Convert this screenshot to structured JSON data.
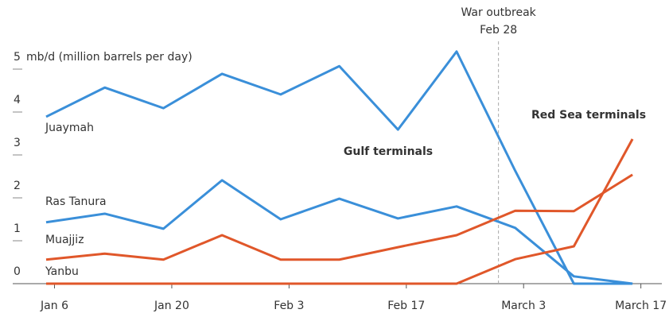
{
  "chart_data": {
    "type": "line",
    "y_axis_label": "mb/d (million barrels per day)",
    "x": [
      5,
      12,
      19,
      26,
      33,
      40,
      47,
      54,
      61,
      68,
      75
    ],
    "xlim": [
      2,
      78
    ],
    "xticks": [
      {
        "value": 6,
        "label": "Jan 6"
      },
      {
        "value": 20,
        "label": "Jan 20"
      },
      {
        "value": 34,
        "label": "Feb 3"
      },
      {
        "value": 48,
        "label": "Feb 17"
      },
      {
        "value": 62,
        "label": "March 3"
      },
      {
        "value": 76,
        "label": "March 17"
      }
    ],
    "ylim": [
      0,
      5.5
    ],
    "yticks": [
      0,
      1,
      2,
      3,
      4,
      5
    ],
    "grid": false,
    "series": [
      {
        "name": "Juaymah",
        "color": "#3a8fd9",
        "values": [
          3.89,
          4.57,
          4.09,
          4.89,
          4.41,
          5.07,
          3.59,
          5.41,
          2.63,
          0,
          0
        ]
      },
      {
        "name": "Ras Tanura",
        "color": "#3a8fd9",
        "values": [
          1.43,
          1.63,
          1.28,
          2.41,
          1.5,
          1.98,
          1.52,
          1.8,
          1.3,
          0.17,
          0
        ]
      },
      {
        "name": "Muajjiz",
        "color": "#e0572a",
        "values": [
          0.56,
          0.7,
          0.56,
          1.13,
          0.56,
          0.56,
          0.85,
          1.13,
          1.7,
          1.69,
          2.54
        ]
      },
      {
        "name": "Yanbu",
        "color": "#e0572a",
        "values": [
          0,
          0,
          0,
          0,
          0,
          0,
          0,
          0,
          0.57,
          0.87,
          3.37
        ]
      }
    ],
    "annotations": [
      {
        "text": "Gulf terminals",
        "color": "#3a8fd9"
      },
      {
        "text": "Red Sea terminals",
        "color": "#e0572a"
      }
    ],
    "event": {
      "text": "War outbreak",
      "date": "Feb 28",
      "x": 59
    }
  }
}
